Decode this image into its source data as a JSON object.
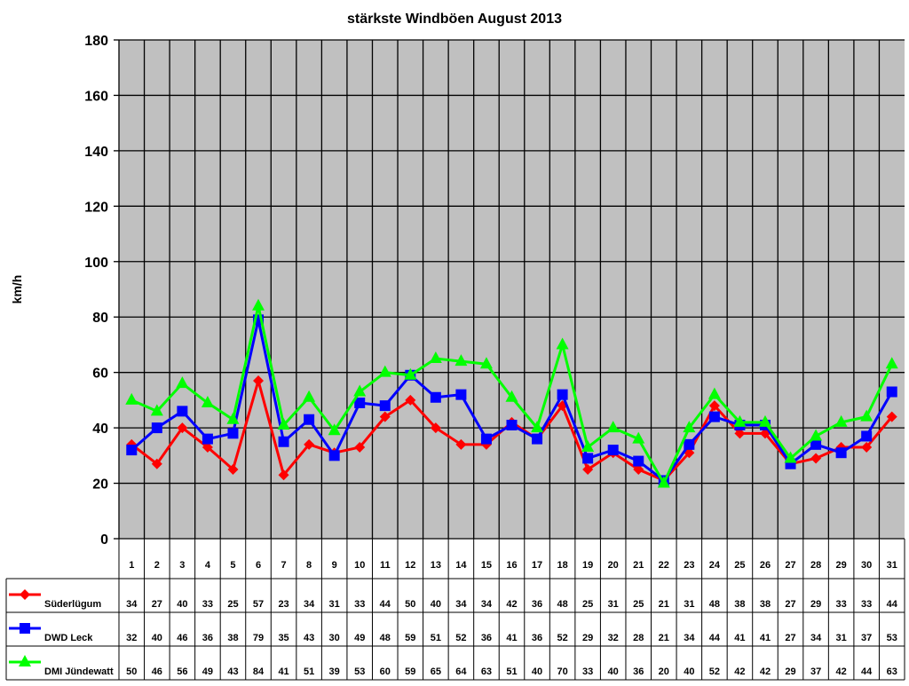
{
  "chart_data": {
    "type": "line",
    "title": "stärkste Windböen August 2013",
    "xlabel": "",
    "ylabel": "km/h",
    "ylim": [
      0,
      180
    ],
    "yticks": [
      0,
      20,
      40,
      60,
      80,
      100,
      120,
      140,
      160,
      180
    ],
    "grid": true,
    "legend": "data-table-left",
    "categories": [
      "1",
      "2",
      "3",
      "4",
      "5",
      "6",
      "7",
      "8",
      "9",
      "10",
      "11",
      "12",
      "13",
      "14",
      "15",
      "16",
      "17",
      "18",
      "19",
      "20",
      "21",
      "22",
      "23",
      "24",
      "25",
      "26",
      "27",
      "28",
      "29",
      "30",
      "31"
    ],
    "series": [
      {
        "name": "Süderlügum",
        "color": "#ff0000",
        "marker": "diamond",
        "values": [
          34,
          27,
          40,
          33,
          25,
          57,
          23,
          34,
          31,
          33,
          44,
          50,
          40,
          34,
          34,
          42,
          36,
          48,
          25,
          31,
          25,
          21,
          31,
          48,
          38,
          38,
          27,
          29,
          33,
          33,
          44
        ]
      },
      {
        "name": "DWD Leck",
        "color": "#0000ff",
        "marker": "square",
        "values": [
          32,
          40,
          46,
          36,
          38,
          79,
          35,
          43,
          30,
          49,
          48,
          59,
          51,
          52,
          36,
          41,
          36,
          52,
          29,
          32,
          28,
          21,
          34,
          44,
          41,
          41,
          27,
          34,
          31,
          37,
          53
        ]
      },
      {
        "name": "DMI Jündewatt",
        "color": "#00ff00",
        "marker": "triangle",
        "values": [
          50,
          46,
          56,
          49,
          43,
          84,
          41,
          51,
          39,
          53,
          60,
          59,
          65,
          64,
          63,
          51,
          40,
          70,
          33,
          40,
          36,
          20,
          40,
          52,
          42,
          42,
          29,
          37,
          42,
          44,
          63
        ]
      }
    ],
    "plot_background": "#c0c0c0"
  }
}
